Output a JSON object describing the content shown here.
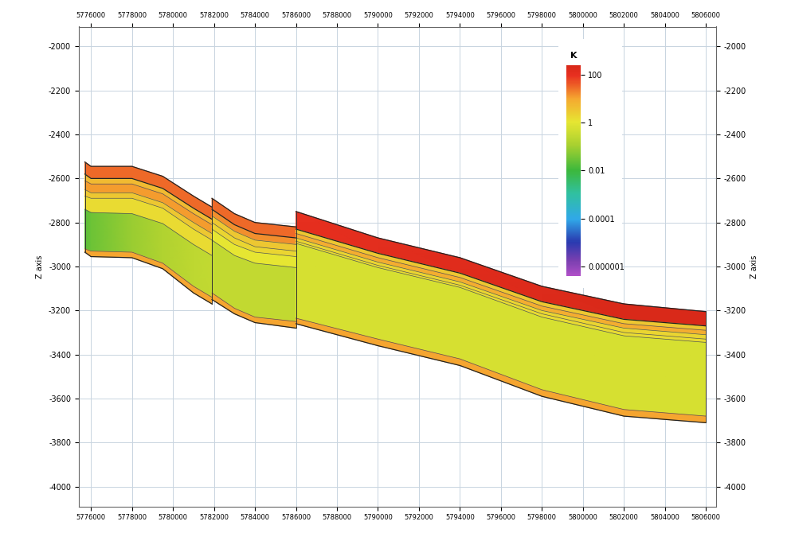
{
  "chart_data": {
    "type": "cross_section",
    "xlim": [
      5775400,
      5806500
    ],
    "xticks": [
      5776000,
      5778000,
      5780000,
      5782000,
      5784000,
      5786000,
      5788000,
      5790000,
      5792000,
      5794000,
      5796000,
      5798000,
      5800000,
      5802000,
      5804000,
      5806000
    ],
    "ylim": [
      -4090,
      -1910
    ],
    "yticks": [
      -2000,
      -2200,
      -2400,
      -2600,
      -2800,
      -3000,
      -3200,
      -3400,
      -3600,
      -3800,
      -4000
    ],
    "y_label": "Z axis",
    "grid": true,
    "colorbar": {
      "title": "K",
      "log": true,
      "range": [
        4e-07,
        250
      ],
      "ticks": [
        100,
        1,
        0.01,
        0.0001,
        {
          "value": 1e-06,
          "label": "0.000001"
        }
      ]
    },
    "blocks": [
      {
        "x": [
          5775700,
          5776000,
          5778000,
          5779500,
          5781000,
          5781900
        ],
        "surfaces": [
          [
            -2525,
            -2545,
            -2545,
            -2590,
            -2680,
            -2730
          ],
          [
            -2580,
            -2600,
            -2600,
            -2645,
            -2735,
            -2785
          ],
          [
            -2610,
            -2625,
            -2625,
            -2670,
            -2760,
            -2810
          ],
          [
            -2650,
            -2665,
            -2665,
            -2710,
            -2800,
            -2850
          ],
          [
            -2680,
            -2690,
            -2690,
            -2735,
            -2830,
            -2880
          ],
          [
            -2740,
            -2755,
            -2760,
            -2805,
            -2900,
            -2950
          ],
          [
            -2920,
            -2930,
            -2935,
            -2985,
            -3090,
            -3140
          ],
          [
            -2935,
            -2955,
            -2960,
            -3010,
            -3120,
            -3170
          ]
        ],
        "k": [
          [
            30,
            30,
            30,
            30,
            30,
            30
          ],
          [
            5,
            5,
            5,
            5,
            5,
            5
          ],
          [
            12,
            12,
            12,
            12,
            12,
            12
          ],
          [
            3,
            3,
            3,
            3,
            3,
            3
          ],
          [
            1.5,
            1.5,
            1.5,
            1.5,
            1.5,
            1.5
          ],
          [
            0.02,
            0.03,
            0.08,
            0.15,
            0.25,
            0.3
          ],
          [
            10,
            10,
            10,
            10,
            10,
            10
          ]
        ]
      },
      {
        "x": [
          5781900,
          5783000,
          5784000,
          5786000
        ],
        "surfaces": [
          [
            -2690,
            -2760,
            -2800,
            -2820
          ],
          [
            -2740,
            -2810,
            -2850,
            -2870
          ],
          [
            -2770,
            -2840,
            -2880,
            -2900
          ],
          [
            -2800,
            -2870,
            -2910,
            -2930
          ],
          [
            -2830,
            -2900,
            -2935,
            -2955
          ],
          [
            -2880,
            -2950,
            -2985,
            -3005
          ],
          [
            -3120,
            -3190,
            -3230,
            -3250
          ],
          [
            -3150,
            -3215,
            -3255,
            -3280
          ]
        ],
        "k": [
          [
            30,
            30,
            30,
            30
          ],
          [
            15,
            15,
            15,
            15
          ],
          [
            3,
            3,
            3,
            3
          ],
          [
            2,
            2,
            2,
            2
          ],
          [
            1,
            1,
            1,
            1
          ],
          [
            0.3,
            0.3,
            0.3,
            0.3
          ],
          [
            10,
            10,
            10,
            10
          ]
        ]
      },
      {
        "x": [
          5786000,
          5790000,
          5794000,
          5798000,
          5802000,
          5806000
        ],
        "surfaces": [
          [
            -2750,
            -2870,
            -2960,
            -3090,
            -3170,
            -3205
          ],
          [
            -2830,
            -2940,
            -3030,
            -3160,
            -3240,
            -3270
          ],
          [
            -2850,
            -2960,
            -3050,
            -3180,
            -3260,
            -3290
          ],
          [
            -2870,
            -2980,
            -3070,
            -3200,
            -3280,
            -3310
          ],
          [
            -2885,
            -2995,
            -3085,
            -3215,
            -3300,
            -3330
          ],
          [
            -2895,
            -3005,
            -3095,
            -3230,
            -3315,
            -3345
          ],
          [
            -3235,
            -3330,
            -3420,
            -3560,
            -3650,
            -3680
          ],
          [
            -3260,
            -3360,
            -3450,
            -3590,
            -3680,
            -3710
          ]
        ],
        "k": [
          [
            100,
            120,
            150,
            180,
            220,
            220
          ],
          [
            3,
            3,
            3,
            3,
            3,
            3
          ],
          [
            8,
            8,
            8,
            8,
            8,
            8
          ],
          [
            2,
            2,
            2,
            2,
            2,
            2
          ],
          [
            1.5,
            1.5,
            1.5,
            1.5,
            1.5,
            1.5
          ],
          [
            0.6,
            0.6,
            0.6,
            0.6,
            0.6,
            0.6
          ],
          [
            10,
            10,
            10,
            10,
            10,
            10
          ]
        ]
      }
    ]
  }
}
